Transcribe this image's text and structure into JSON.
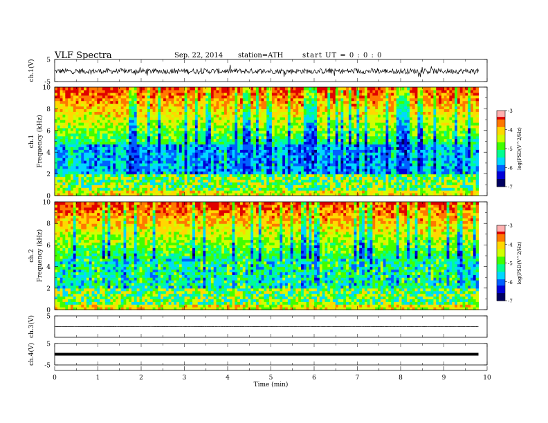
{
  "header": {
    "title": "VLF Spectra",
    "date": "Sep. 22, 2014",
    "station": "station=ATH",
    "start_ut": "start UT =   0 : 0 : 0"
  },
  "chart_data": {
    "type": "heatmap",
    "xlabel": "Time (min)",
    "xlim": [
      0,
      10
    ],
    "x_ticks": [
      0,
      1,
      2,
      3,
      4,
      5,
      6,
      7,
      8,
      9,
      10
    ],
    "data_end_min": 9.8,
    "panels": [
      {
        "id": "ch1-wave",
        "kind": "waveform",
        "ylabel": "ch.1(V)",
        "ylim": [
          -5,
          5
        ],
        "y_ticks": [
          -5,
          5
        ],
        "y_tick_labels": [
          "-5",
          "5"
        ],
        "level": -0.3,
        "noise": 1.2
      },
      {
        "id": "ch1-spec",
        "kind": "spectrogram",
        "ylabel": "ch.1\nFrequency (kHz)",
        "ylim": [
          0,
          10
        ],
        "y_ticks": [
          0,
          2,
          4,
          6,
          8,
          10
        ],
        "y_tick_labels": [
          "0",
          "2",
          "4",
          "6",
          "8",
          "10"
        ],
        "colorbar": {
          "label": "log(PSD(V^2/Hz)",
          "range": [
            -7,
            -3
          ],
          "ticks": [
            "-3",
            "-4",
            "-5",
            "-6",
            "-7"
          ]
        }
      },
      {
        "id": "ch2-spec",
        "kind": "spectrogram",
        "ylabel": "ch.2\nFrequency (kHz)",
        "ylim": [
          0,
          10
        ],
        "y_ticks": [
          0,
          2,
          4,
          6,
          8,
          10
        ],
        "y_tick_labels": [
          "0",
          "2",
          "4",
          "6",
          "8",
          "10"
        ],
        "colorbar": {
          "label": "log(PSD(V^2/Hz)",
          "range": [
            -7,
            -3
          ],
          "ticks": [
            "-3",
            "-4",
            "-5",
            "-6",
            "-7"
          ]
        }
      },
      {
        "id": "ch3-wave",
        "kind": "waveform",
        "ylabel": "ch.3(V)",
        "ylim": [
          -5,
          5
        ],
        "y_ticks": [
          5
        ],
        "y_tick_labels": [
          "5"
        ],
        "level": 0.0,
        "noise": 0.08
      },
      {
        "id": "ch4-wave",
        "kind": "waveform",
        "ylabel": "ch.4(V)",
        "ylim": [
          -5,
          5
        ],
        "y_ticks": [
          -5,
          5
        ],
        "y_tick_labels": [
          "-5",
          "5"
        ],
        "level": 0.0,
        "noise": 0.0
      }
    ],
    "colormap": [
      "#000060",
      "#0000d8",
      "#0060ff",
      "#00d8ff",
      "#00ff90",
      "#40ff00",
      "#d0ff00",
      "#ffd800",
      "#ff7800",
      "#e00000",
      "#ffffff"
    ]
  }
}
